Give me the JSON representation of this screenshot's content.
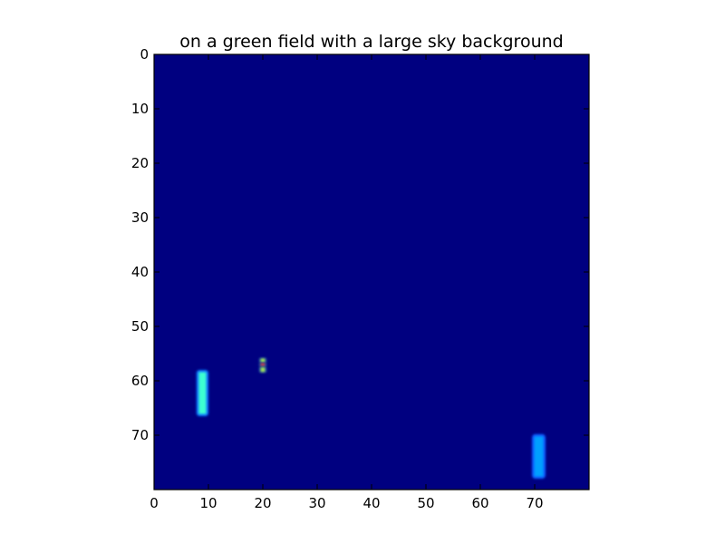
{
  "chart_data": {
    "type": "heatmap",
    "title": "on a green field with a large sky background",
    "xlabel": "",
    "ylabel": "",
    "xlim": [
      0,
      80
    ],
    "ylim": [
      80,
      0
    ],
    "grid": false,
    "y_axis_inverted": true,
    "colormap": "jet",
    "background_color": "#000080",
    "x_ticks": [
      0,
      10,
      20,
      30,
      40,
      50,
      60,
      70
    ],
    "y_ticks": [
      0,
      10,
      20,
      30,
      40,
      50,
      60,
      70
    ],
    "x_tick_labels": [
      "0",
      "10",
      "20",
      "30",
      "40",
      "50",
      "60",
      "70"
    ],
    "y_tick_labels": [
      "0",
      "10",
      "20",
      "30",
      "40",
      "50",
      "60",
      "70"
    ],
    "features": [
      {
        "x0": 7.8,
        "x1": 10.0,
        "y0": 58.0,
        "y1": 66.5,
        "edge_color": "#0a78ff",
        "core_color": "#3cffd2"
      },
      {
        "x0": 69.5,
        "x1": 72.0,
        "y0": 69.8,
        "y1": 78.0,
        "edge_color": "#0a5aff",
        "core_color": "#00a0ff"
      },
      {
        "x0": 19.3,
        "x1": 20.7,
        "y0": 55.8,
        "y1": 56.7,
        "edge_color": "#2050a0",
        "core_color": "#a8e850"
      },
      {
        "x0": 19.3,
        "x1": 20.7,
        "y0": 56.7,
        "y1": 57.4,
        "edge_color": "#2050a0",
        "core_color": "#e04040"
      },
      {
        "x0": 19.3,
        "x1": 20.7,
        "y0": 57.4,
        "y1": 58.5,
        "edge_color": "#2050a0",
        "core_color": "#a8e850"
      }
    ]
  }
}
